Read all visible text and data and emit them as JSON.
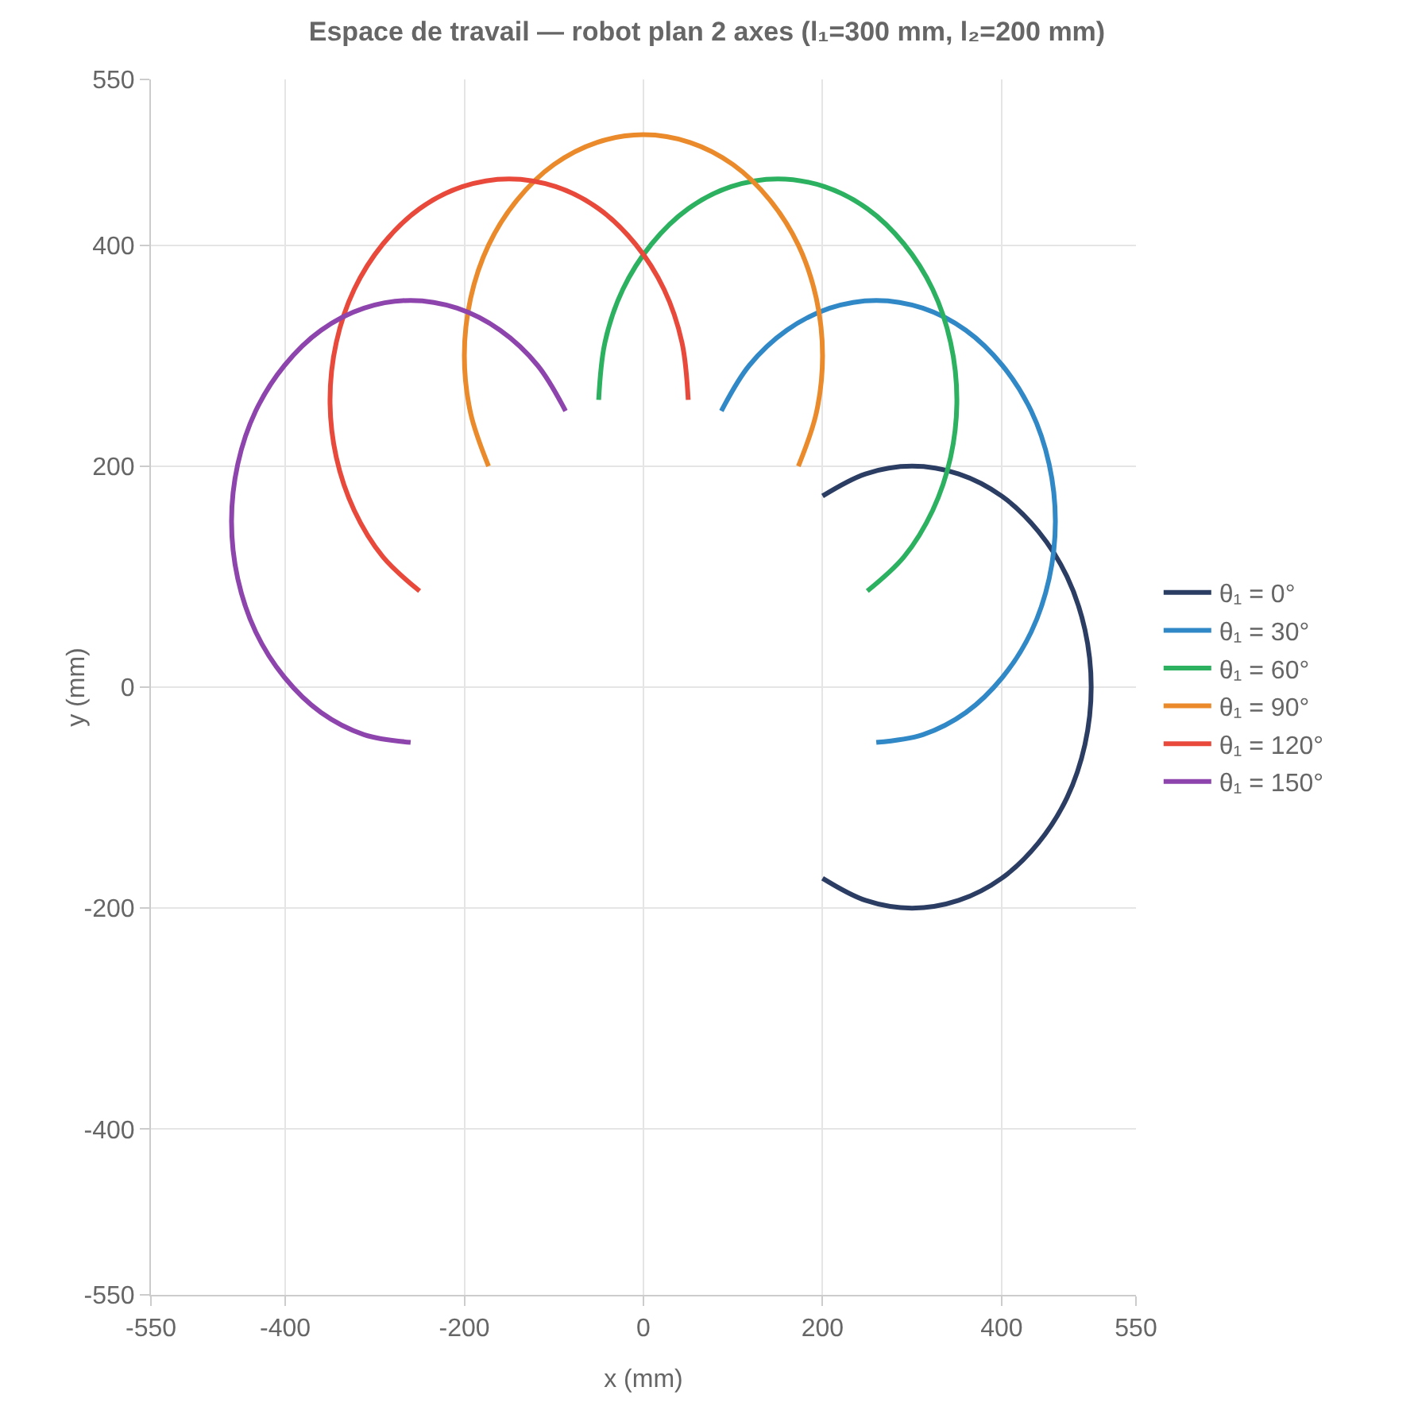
{
  "chart_data": {
    "type": "line",
    "title": "Espace de travail — robot plan 2 axes (l₁=300 mm, l₂=200 mm)",
    "xlabel": "x (mm)",
    "ylabel": "y (mm)",
    "xlim": [
      -550,
      550
    ],
    "xticks": [
      -550,
      -400,
      -200,
      0,
      200,
      400,
      550
    ],
    "ylim": [
      -550,
      550
    ],
    "yticks": [
      -550,
      -400,
      -200,
      0,
      200,
      400,
      550
    ],
    "grid": true,
    "legend": "right",
    "marker": "none",
    "line_style": "solid",
    "series": [
      {
        "name": "θ₁ = 0°",
        "color": "#2b3d63",
        "x": [
          200,
          248,
          300,
          352,
          400,
          441,
          473,
          493,
          500,
          493,
          473,
          441,
          400,
          352,
          300,
          248,
          200
        ],
        "values": [
          -173,
          -193,
          -200,
          -193,
          -173,
          -141,
          -100,
          -52,
          0,
          52,
          100,
          141,
          173,
          193,
          200,
          193,
          173
        ]
      },
      {
        "name": "θ₁ = 30°",
        "color": "#3088c6",
        "x": [
          260,
          312,
          360,
          401,
          433,
          453,
          460,
          453,
          433,
          401,
          360,
          312,
          260,
          208,
          160,
          118,
          87
        ],
        "values": [
          -50,
          -43,
          -23,
          9,
          50,
          98,
          150,
          202,
          250,
          291,
          323,
          343,
          350,
          343,
          323,
          291,
          250
        ]
      },
      {
        "name": "θ₁ = 60°",
        "color": "#2bb15f",
        "x": [
          250,
          291,
          323,
          343,
          350,
          343,
          323,
          291,
          250,
          202,
          150,
          98,
          50,
          9,
          -23,
          -43,
          -50
        ],
        "values": [
          87,
          118,
          160,
          208,
          260,
          312,
          360,
          401,
          433,
          453,
          460,
          453,
          433,
          401,
          360,
          312,
          260
        ]
      },
      {
        "name": "θ₁ = 90°",
        "color": "#ea8a2a",
        "x": [
          173,
          193,
          200,
          193,
          173,
          141,
          100,
          52,
          0,
          -52,
          -100,
          -141,
          -173,
          -193,
          -200,
          -193,
          -173
        ],
        "values": [
          200,
          248,
          300,
          352,
          400,
          441,
          473,
          493,
          500,
          493,
          473,
          441,
          400,
          352,
          300,
          248,
          200
        ]
      },
      {
        "name": "θ₁ = 120°",
        "color": "#e8493b",
        "x": [
          50,
          43,
          23,
          -9,
          -50,
          -98,
          -150,
          -202,
          -250,
          -291,
          -323,
          -343,
          -350,
          -343,
          -323,
          -291,
          -250
        ],
        "values": [
          260,
          312,
          360,
          401,
          433,
          453,
          460,
          453,
          433,
          401,
          360,
          312,
          260,
          208,
          160,
          118,
          87
        ]
      },
      {
        "name": "θ₁ = 150°",
        "color": "#8e44ad",
        "x": [
          -87,
          -118,
          -160,
          -208,
          -260,
          -312,
          -360,
          -401,
          -433,
          -453,
          -460,
          -453,
          -433,
          -401,
          -360,
          -312,
          -260
        ],
        "values": [
          250,
          291,
          323,
          343,
          350,
          343,
          323,
          291,
          250,
          202,
          150,
          98,
          50,
          9,
          -23,
          -43,
          -50
        ]
      }
    ]
  }
}
